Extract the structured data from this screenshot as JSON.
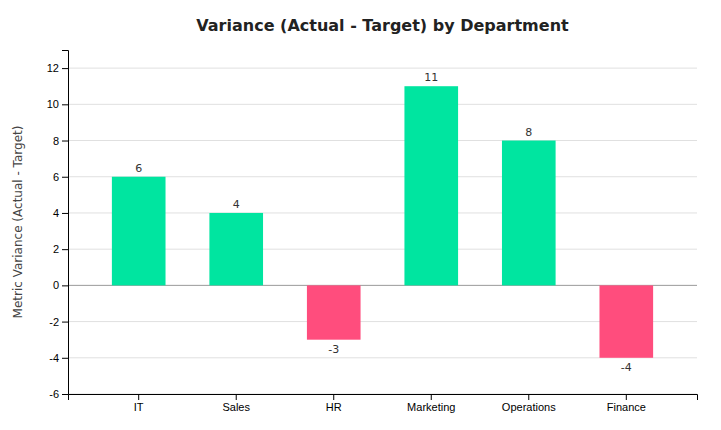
{
  "chart_data": {
    "type": "bar",
    "title": "Variance (Actual - Target) by Department",
    "ylabel": "Metric Variance (Actual - Target)",
    "categories": [
      "IT",
      "Sales",
      "HR",
      "Marketing",
      "Operations",
      "Finance"
    ],
    "values": [
      6,
      4,
      -3,
      11,
      8,
      -4
    ],
    "colors": [
      "#00E5A0",
      "#00E5A0",
      "#FF4D7D",
      "#00E5A0",
      "#00E5A0",
      "#FF4D7D"
    ],
    "ylim": [
      -6,
      13
    ],
    "yticks": [
      -6,
      -4,
      -2,
      0,
      2,
      4,
      6,
      8,
      10,
      12
    ],
    "grid": true,
    "data_labels": true
  }
}
